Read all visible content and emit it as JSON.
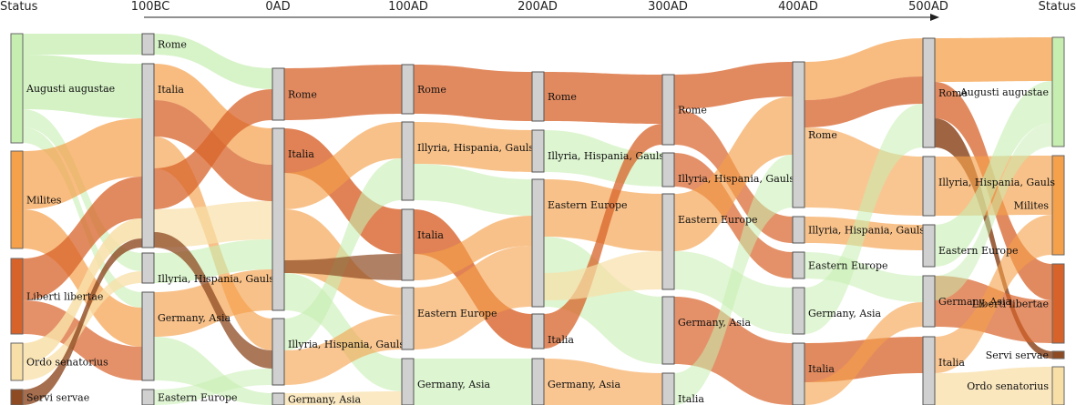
{
  "headers": {
    "status_left": "Status",
    "status_right": "Status",
    "eras": [
      "100BC",
      "0AD",
      "100AD",
      "200AD",
      "300AD",
      "400AD",
      "500AD"
    ]
  },
  "colors": {
    "augusti": "#c6eeb0",
    "milites": "#f5a04a",
    "liberti": "#d8632a",
    "ordo": "#f8dfa8",
    "servi": "#8e4a22",
    "node_fill": "#d0d0d0",
    "node_stroke": "#555555"
  },
  "status_left": [
    {
      "label": "Augusti augustae",
      "color": "augusti"
    },
    {
      "label": "Milites",
      "color": "milites"
    },
    {
      "label": "Liberti libertae",
      "color": "liberti"
    },
    {
      "label": "Ordo senatorius",
      "color": "ordo"
    },
    {
      "label": "Servi servae",
      "color": "servi"
    }
  ],
  "status_right": [
    {
      "label": "Augusti augustae",
      "color": "augusti"
    },
    {
      "label": "Milites",
      "color": "milites"
    },
    {
      "label": "Liberti libertae",
      "color": "liberti"
    },
    {
      "label": "Servi servae",
      "color": "servi"
    },
    {
      "label": "Ordo senatorius",
      "color": "ordo"
    }
  ],
  "region_columns": [
    {
      "era": "100BC",
      "nodes": [
        "Rome",
        "Italia",
        "Illyria, Hispania, Gauls",
        "Germany, Asia",
        "Eastern Europe"
      ]
    },
    {
      "era": "0AD",
      "nodes": [
        "Rome",
        "Italia",
        "Illyria, Hispania, Gauls",
        "Germany, Asia"
      ]
    },
    {
      "era": "100AD",
      "nodes": [
        "Rome",
        "Illyria, Hispania, Gauls",
        "Italia",
        "Eastern Europe",
        "Germany, Asia"
      ]
    },
    {
      "era": "200AD",
      "nodes": [
        "Rome",
        "Illyria, Hispania, Gauls",
        "Eastern Europe",
        "Italia",
        "Germany, Asia"
      ]
    },
    {
      "era": "300AD",
      "nodes": [
        "Rome",
        "Illyria, Hispania, Gauls",
        "Eastern Europe",
        "Germany, Asia",
        "Italia"
      ]
    },
    {
      "era": "400AD",
      "nodes": [
        "Rome",
        "Illyria, Hispania, Gauls",
        "Eastern Europe",
        "Germany, Asia",
        "Italia"
      ]
    },
    {
      "era": "500AD",
      "nodes": [
        "Rome",
        "Illyria, Hispania, Gauls",
        "Eastern Europe",
        "Germany, Asia",
        "Italia"
      ]
    }
  ]
}
